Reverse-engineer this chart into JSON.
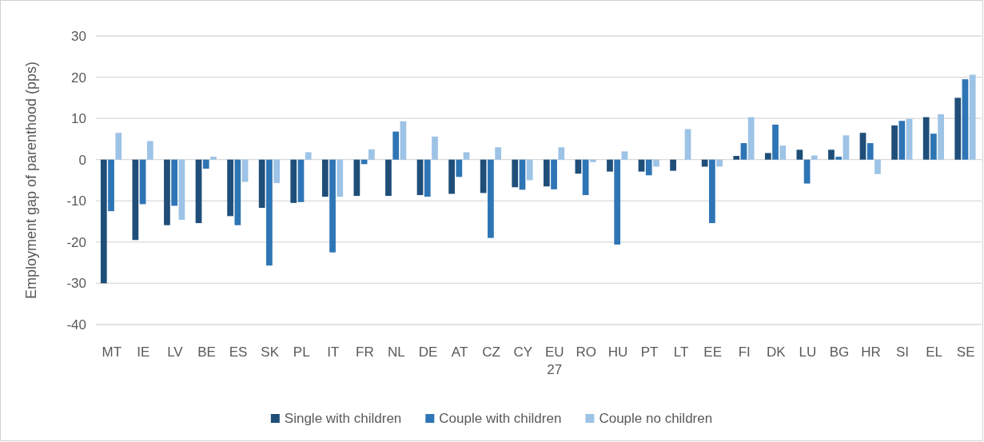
{
  "chart_data": {
    "type": "bar",
    "ylabel": "Employment gap of parenthood (pps)",
    "categories": [
      "MT",
      "IE",
      "LV",
      "BE",
      "ES",
      "SK",
      "PL",
      "IT",
      "FR",
      "NL",
      "DE",
      "AT",
      "CZ",
      "CY",
      "EU 27",
      "RO",
      "HU",
      "PT",
      "LT",
      "EE",
      "FI",
      "DK",
      "LU",
      "BG",
      "HR",
      "SI",
      "EL",
      "SE"
    ],
    "series": [
      {
        "name": "Single with children",
        "color": "#1f4e79",
        "values": [
          -30,
          -19.5,
          -15.9,
          -15.4,
          -13.7,
          -11.7,
          -10.5,
          -9,
          -8.8,
          -8.8,
          -8.6,
          -8.3,
          -8.1,
          -6.7,
          -6.5,
          -3.4,
          -2.9,
          -2.9,
          -2.7,
          -1.7,
          0.9,
          1.6,
          2.4,
          2.4,
          6.5,
          8.3,
          10.3,
          15
        ]
      },
      {
        "name": "Couple with children",
        "color": "#2e75b6",
        "values": [
          -12.5,
          -10.8,
          -11.2,
          -2.2,
          -15.9,
          -25.7,
          -10.3,
          -22.5,
          -1.1,
          6.8,
          -9,
          -4.2,
          -19,
          -7.3,
          -7.2,
          -8.6,
          -20.6,
          -3.8,
          null,
          -15.4,
          4,
          8.5,
          -5.8,
          0.7,
          4,
          9.4,
          6.3,
          19.5
        ]
      },
      {
        "name": "Couple no children",
        "color": "#9dc3e6",
        "values": [
          6.5,
          4.5,
          -14.6,
          0.7,
          -5.4,
          -5.7,
          1.8,
          -9,
          2.5,
          9.3,
          5.6,
          1.8,
          3,
          -5,
          3,
          -0.6,
          2,
          -1.7,
          7.4,
          -1.7,
          10.3,
          3.4,
          1,
          5.9,
          -3.5,
          9.9,
          11,
          20.6
        ]
      }
    ],
    "ylim": [
      -40,
      30
    ],
    "yticks": [
      -40,
      -30,
      -20,
      -10,
      0,
      10,
      20,
      30
    ],
    "grid": "y",
    "legend": "bottom"
  }
}
